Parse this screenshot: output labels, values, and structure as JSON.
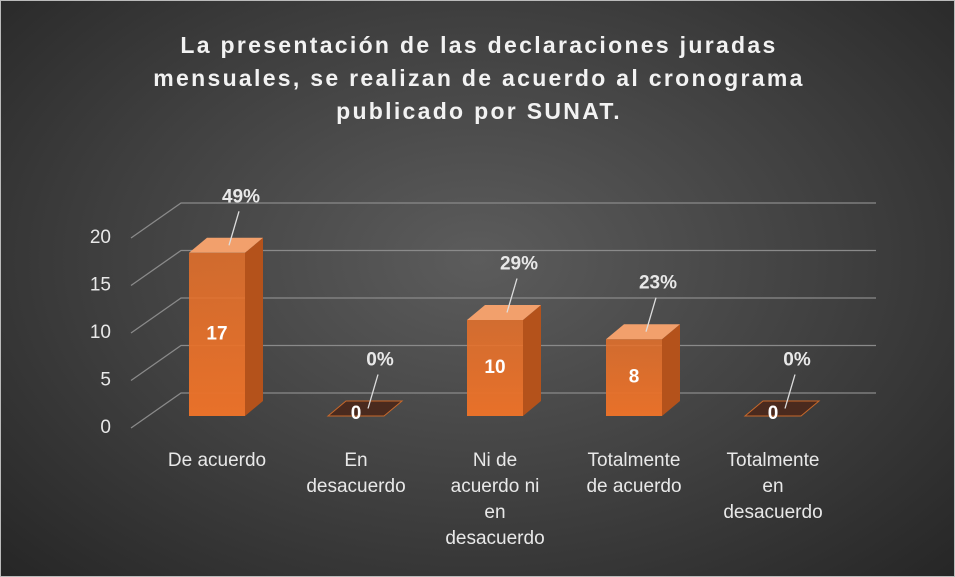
{
  "chart_data": {
    "type": "bar3d",
    "title": "La presentación de las declaraciones juradas mensuales, se realizan de acuerdo al cronograma publicado por SUNAT.",
    "categories": [
      "De acuerdo",
      "En desacuerdo",
      "Ni de acuerdo ni en desacuerdo",
      "Totalmente de acuerdo",
      "Totalmente en desacuerdo"
    ],
    "values": [
      17,
      0,
      10,
      8,
      0
    ],
    "percentages": {
      "values": [
        49,
        0,
        29,
        23,
        0
      ],
      "value_labels": [
        "49%",
        "0%",
        "29%",
        "23%",
        "0%"
      ]
    },
    "color": "#e8712a",
    "ylim": [
      0,
      20
    ],
    "yticks": [
      0,
      5,
      10,
      15,
      20
    ],
    "grid": true
  }
}
